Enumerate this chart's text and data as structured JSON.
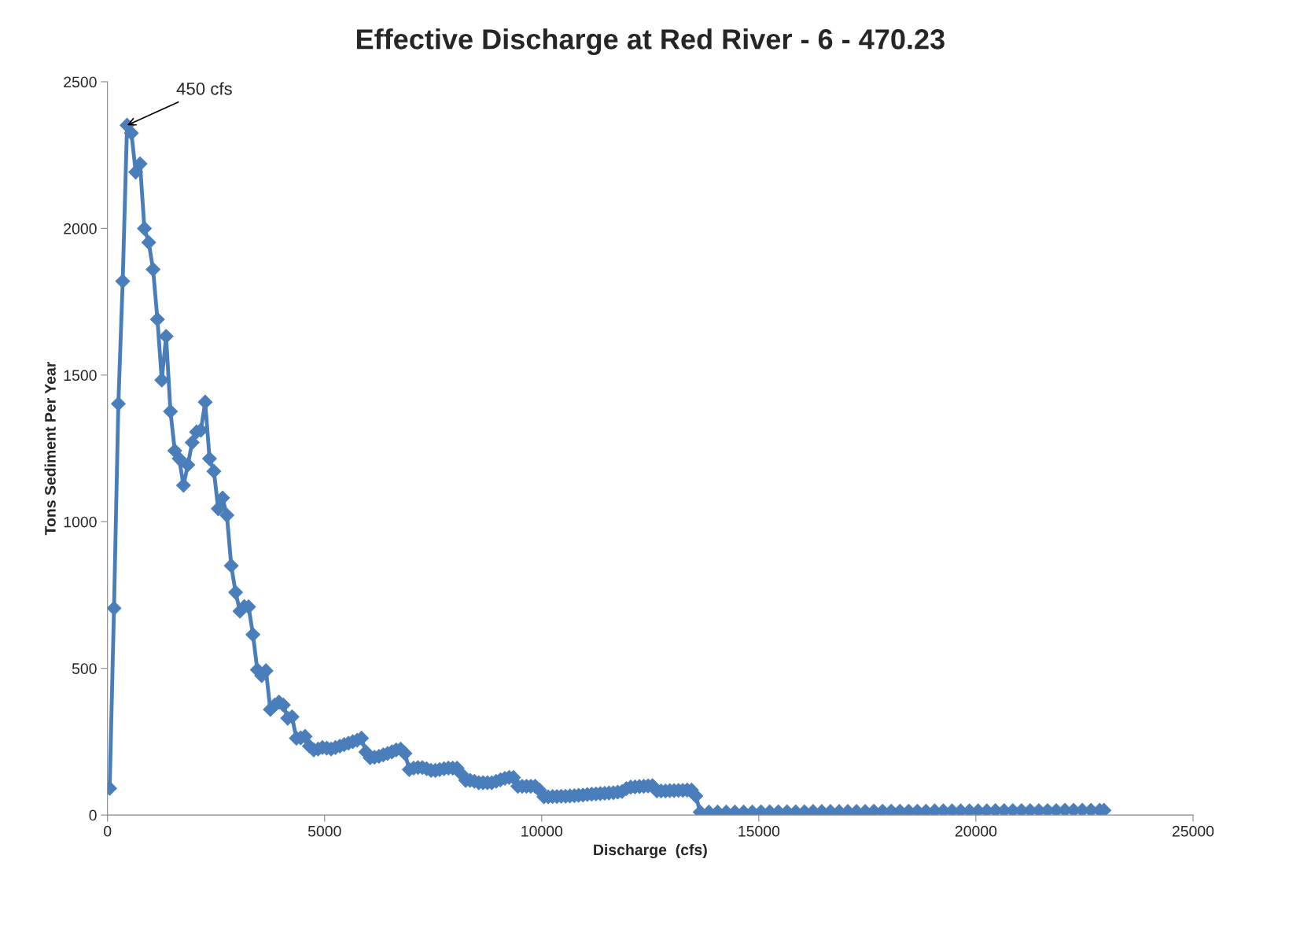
{
  "chart_data": {
    "type": "line",
    "title": "Effective Discharge at Red River - 6 - 470.23",
    "xlabel": "Discharge  (cfs)",
    "ylabel": "Tons Sediment Per Year",
    "xlim": [
      0,
      25000
    ],
    "xticks": [
      0,
      5000,
      10000,
      15000,
      20000,
      25000
    ],
    "ylim": [
      0,
      2500
    ],
    "yticks": [
      0,
      500,
      1000,
      1500,
      2000,
      2500
    ],
    "grid": false,
    "marker": "diamond",
    "line_style": "solid",
    "annotations": [
      {
        "text": "450 cfs",
        "x": 450,
        "y": 2352
      }
    ],
    "series": [
      {
        "color": "#4a7ebb",
        "x": [
          50,
          150,
          250,
          350,
          450,
          550,
          650,
          750,
          850,
          950,
          1050,
          1150,
          1250,
          1350,
          1450,
          1550,
          1650,
          1750,
          1850,
          1950,
          2050,
          2150,
          2250,
          2350,
          2450,
          2550,
          2650,
          2750,
          2850,
          2950,
          3050,
          3150,
          3250,
          3350,
          3450,
          3550,
          3650,
          3750,
          3850,
          3950,
          4050,
          4150,
          4250,
          4350,
          4450,
          4550,
          4650,
          4750,
          4850,
          4950,
          5050,
          5150,
          5250,
          5350,
          5450,
          5550,
          5650,
          5750,
          5850,
          5950,
          6050,
          6150,
          6250,
          6350,
          6450,
          6550,
          6650,
          6750,
          6850,
          6950,
          7050,
          7150,
          7250,
          7350,
          7450,
          7550,
          7650,
          7750,
          7850,
          7950,
          8050,
          8150,
          8250,
          8350,
          8450,
          8550,
          8650,
          8750,
          8850,
          8950,
          9050,
          9150,
          9250,
          9350,
          9450,
          9550,
          9650,
          9750,
          9850,
          9950,
          10050,
          10150,
          10250,
          10350,
          10450,
          10550,
          10650,
          10750,
          10850,
          10950,
          11050,
          11150,
          11250,
          11350,
          11450,
          11550,
          11650,
          11750,
          11850,
          11950,
          12050,
          12150,
          12250,
          12350,
          12450,
          12550,
          12650,
          12750,
          12850,
          12950,
          13050,
          13150,
          13250,
          13350,
          13450,
          13550,
          13650,
          13850,
          14050,
          14250,
          14450,
          14650,
          14850,
          15050,
          15250,
          15450,
          15650,
          15850,
          16050,
          16250,
          16450,
          16650,
          16850,
          17050,
          17250,
          17450,
          17650,
          17850,
          18050,
          18250,
          18450,
          18650,
          18850,
          19050,
          19250,
          19450,
          19650,
          19850,
          20050,
          20250,
          20450,
          20650,
          20850,
          21050,
          21250,
          21450,
          21650,
          21850,
          22050,
          22250,
          22450,
          22650,
          22850,
          22950
        ],
        "values": [
          91,
          705,
          1402,
          1820,
          2352,
          2325,
          2192,
          2220,
          2000,
          1952,
          1860,
          1690,
          1483,
          1632,
          1376,
          1242,
          1215,
          1124,
          1194,
          1270,
          1306,
          1312,
          1408,
          1215,
          1172,
          1044,
          1081,
          1022,
          850,
          759,
          695,
          711,
          710,
          615,
          495,
          475,
          492,
          360,
          375,
          385,
          375,
          330,
          335,
          262,
          263,
          268,
          235,
          222,
          225,
          230,
          228,
          225,
          230,
          235,
          240,
          245,
          250,
          255,
          262,
          215,
          195,
          197,
          200,
          205,
          210,
          215,
          222,
          225,
          210,
          155,
          160,
          162,
          162,
          158,
          152,
          152,
          155,
          158,
          160,
          160,
          160,
          140,
          118,
          118,
          115,
          110,
          110,
          110,
          110,
          115,
          120,
          125,
          128,
          128,
          98,
          98,
          98,
          98,
          98,
          85,
          62,
          62,
          63,
          63,
          64,
          64,
          65,
          66,
          67,
          68,
          70,
          71,
          72,
          73,
          74,
          75,
          76,
          78,
          80,
          90,
          95,
          96,
          97,
          98,
          99,
          100,
          82,
          82,
          82,
          83,
          83,
          84,
          84,
          85,
          85,
          65,
          10,
          10,
          10,
          10,
          10,
          10,
          10,
          11,
          11,
          11,
          11,
          11,
          11,
          12,
          12,
          12,
          12,
          12,
          12,
          12,
          13,
          13,
          13,
          13,
          13,
          13,
          13,
          14,
          14,
          14,
          14,
          14,
          14,
          14,
          15,
          15,
          15,
          15,
          15,
          15,
          15,
          15,
          16,
          16,
          16,
          16,
          16,
          16
        ]
      }
    ]
  }
}
